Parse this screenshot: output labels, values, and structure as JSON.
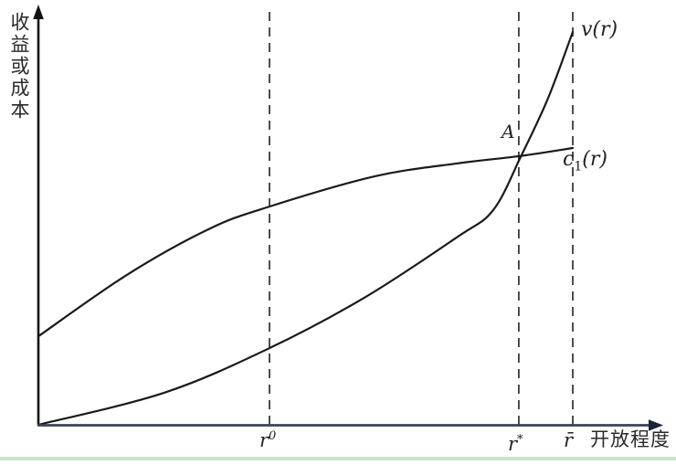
{
  "labels": {
    "y_axis": "收益或成本",
    "x_axis": "开放程度",
    "curve_v": "v(r)",
    "curve_c_base": "c",
    "curve_c_sub": "1",
    "curve_c_rest": "(r)",
    "point_a": "A",
    "r0_base": "r",
    "r0_sup": "0",
    "rstar_base": "r",
    "rstar_sup": "*",
    "rbar": "r̄"
  },
  "theme": {
    "curve_ink": "#1a1a1a",
    "guide_ink": "#2f2f2f",
    "y_axis_ink": "#141414",
    "x_axis_ink": "#3b4257",
    "arrow_ink": "#1c2336",
    "bottom_strip_green": "#c7e7c4"
  },
  "chart_data": {
    "type": "line",
    "title": "",
    "xlabel": "开放程度",
    "ylabel": "收益或成本",
    "x_range": [
      0,
      1
    ],
    "y_range": [
      0,
      1
    ],
    "grid": false,
    "legend": "inline-curve-labels",
    "series": [
      {
        "name": "v(r)",
        "label": "v(r)",
        "shape": "convex increasing",
        "points": [
          [
            0,
            0
          ],
          [
            0.236,
            0.077
          ],
          [
            0.433,
            0.184
          ],
          [
            0.612,
            0.306
          ],
          [
            0.783,
            0.449
          ],
          [
            0.851,
            0.514
          ],
          [
            0.903,
            0.643
          ],
          [
            0.954,
            0.783
          ],
          [
            1.0,
            0.941
          ]
        ]
      },
      {
        "name": "c1(r)",
        "label": "c₁(r)",
        "shape": "concave increasing, flattening",
        "points": [
          [
            0,
            0.212
          ],
          [
            0.168,
            0.361
          ],
          [
            0.321,
            0.47
          ],
          [
            0.433,
            0.523
          ],
          [
            0.629,
            0.595
          ],
          [
            0.783,
            0.626
          ],
          [
            0.903,
            0.644
          ],
          [
            1.0,
            0.663
          ]
        ]
      }
    ],
    "guides": [
      {
        "name": "r0",
        "label": "r⁰",
        "x": 0.4325,
        "style": "dashed-vertical"
      },
      {
        "name": "rstar",
        "label": "r*",
        "x": 0.899,
        "style": "dashed-vertical"
      },
      {
        "name": "rbar",
        "label": "r̄",
        "x": 1.0,
        "style": "dashed-vertical"
      }
    ],
    "annotations": [
      {
        "name": "A",
        "label": "A",
        "x": 0.903,
        "y": 0.643,
        "meaning": "intersection of v(r) and c1(r) at r*"
      }
    ]
  }
}
